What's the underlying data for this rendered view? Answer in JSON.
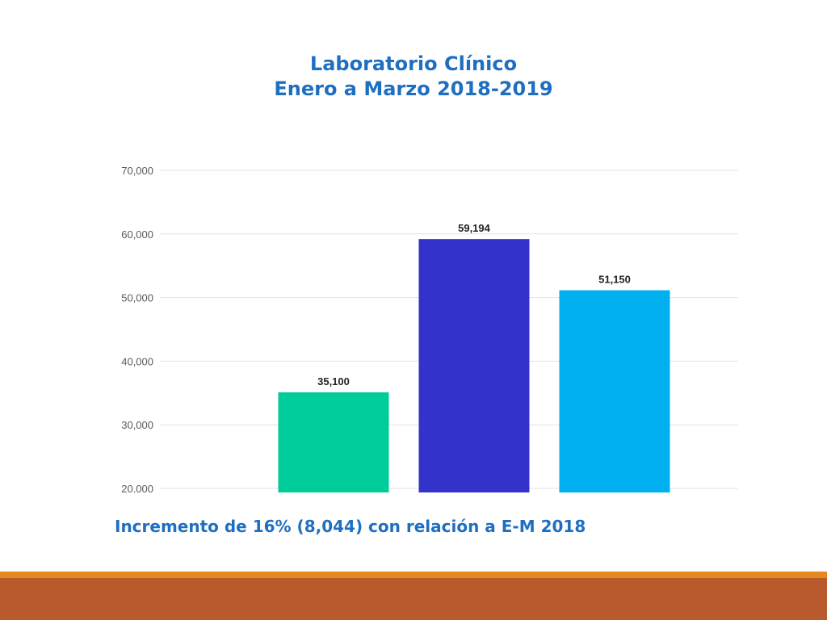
{
  "chart_data": {
    "type": "bar",
    "title": "Laboratorio Clínico",
    "subtitle": "Enero a Marzo 2018-2019",
    "categories": [
      "",
      "",
      ""
    ],
    "values": [
      35100,
      59194,
      51150
    ],
    "value_labels": [
      "35,100",
      "59,194",
      "51,150"
    ],
    "colors": [
      "#00cc99",
      "#3333cc",
      "#00b0f0"
    ],
    "ylim": [
      20000,
      70000
    ],
    "yticks": [
      20000,
      30000,
      40000,
      50000,
      60000,
      70000
    ],
    "ytick_labels": [
      "20.000",
      "30,000",
      "40,000",
      "50,000",
      "60,000",
      "70,000"
    ],
    "grid": true
  },
  "note": "Incremento de 16% (8,044) con relación a E-M 2018"
}
